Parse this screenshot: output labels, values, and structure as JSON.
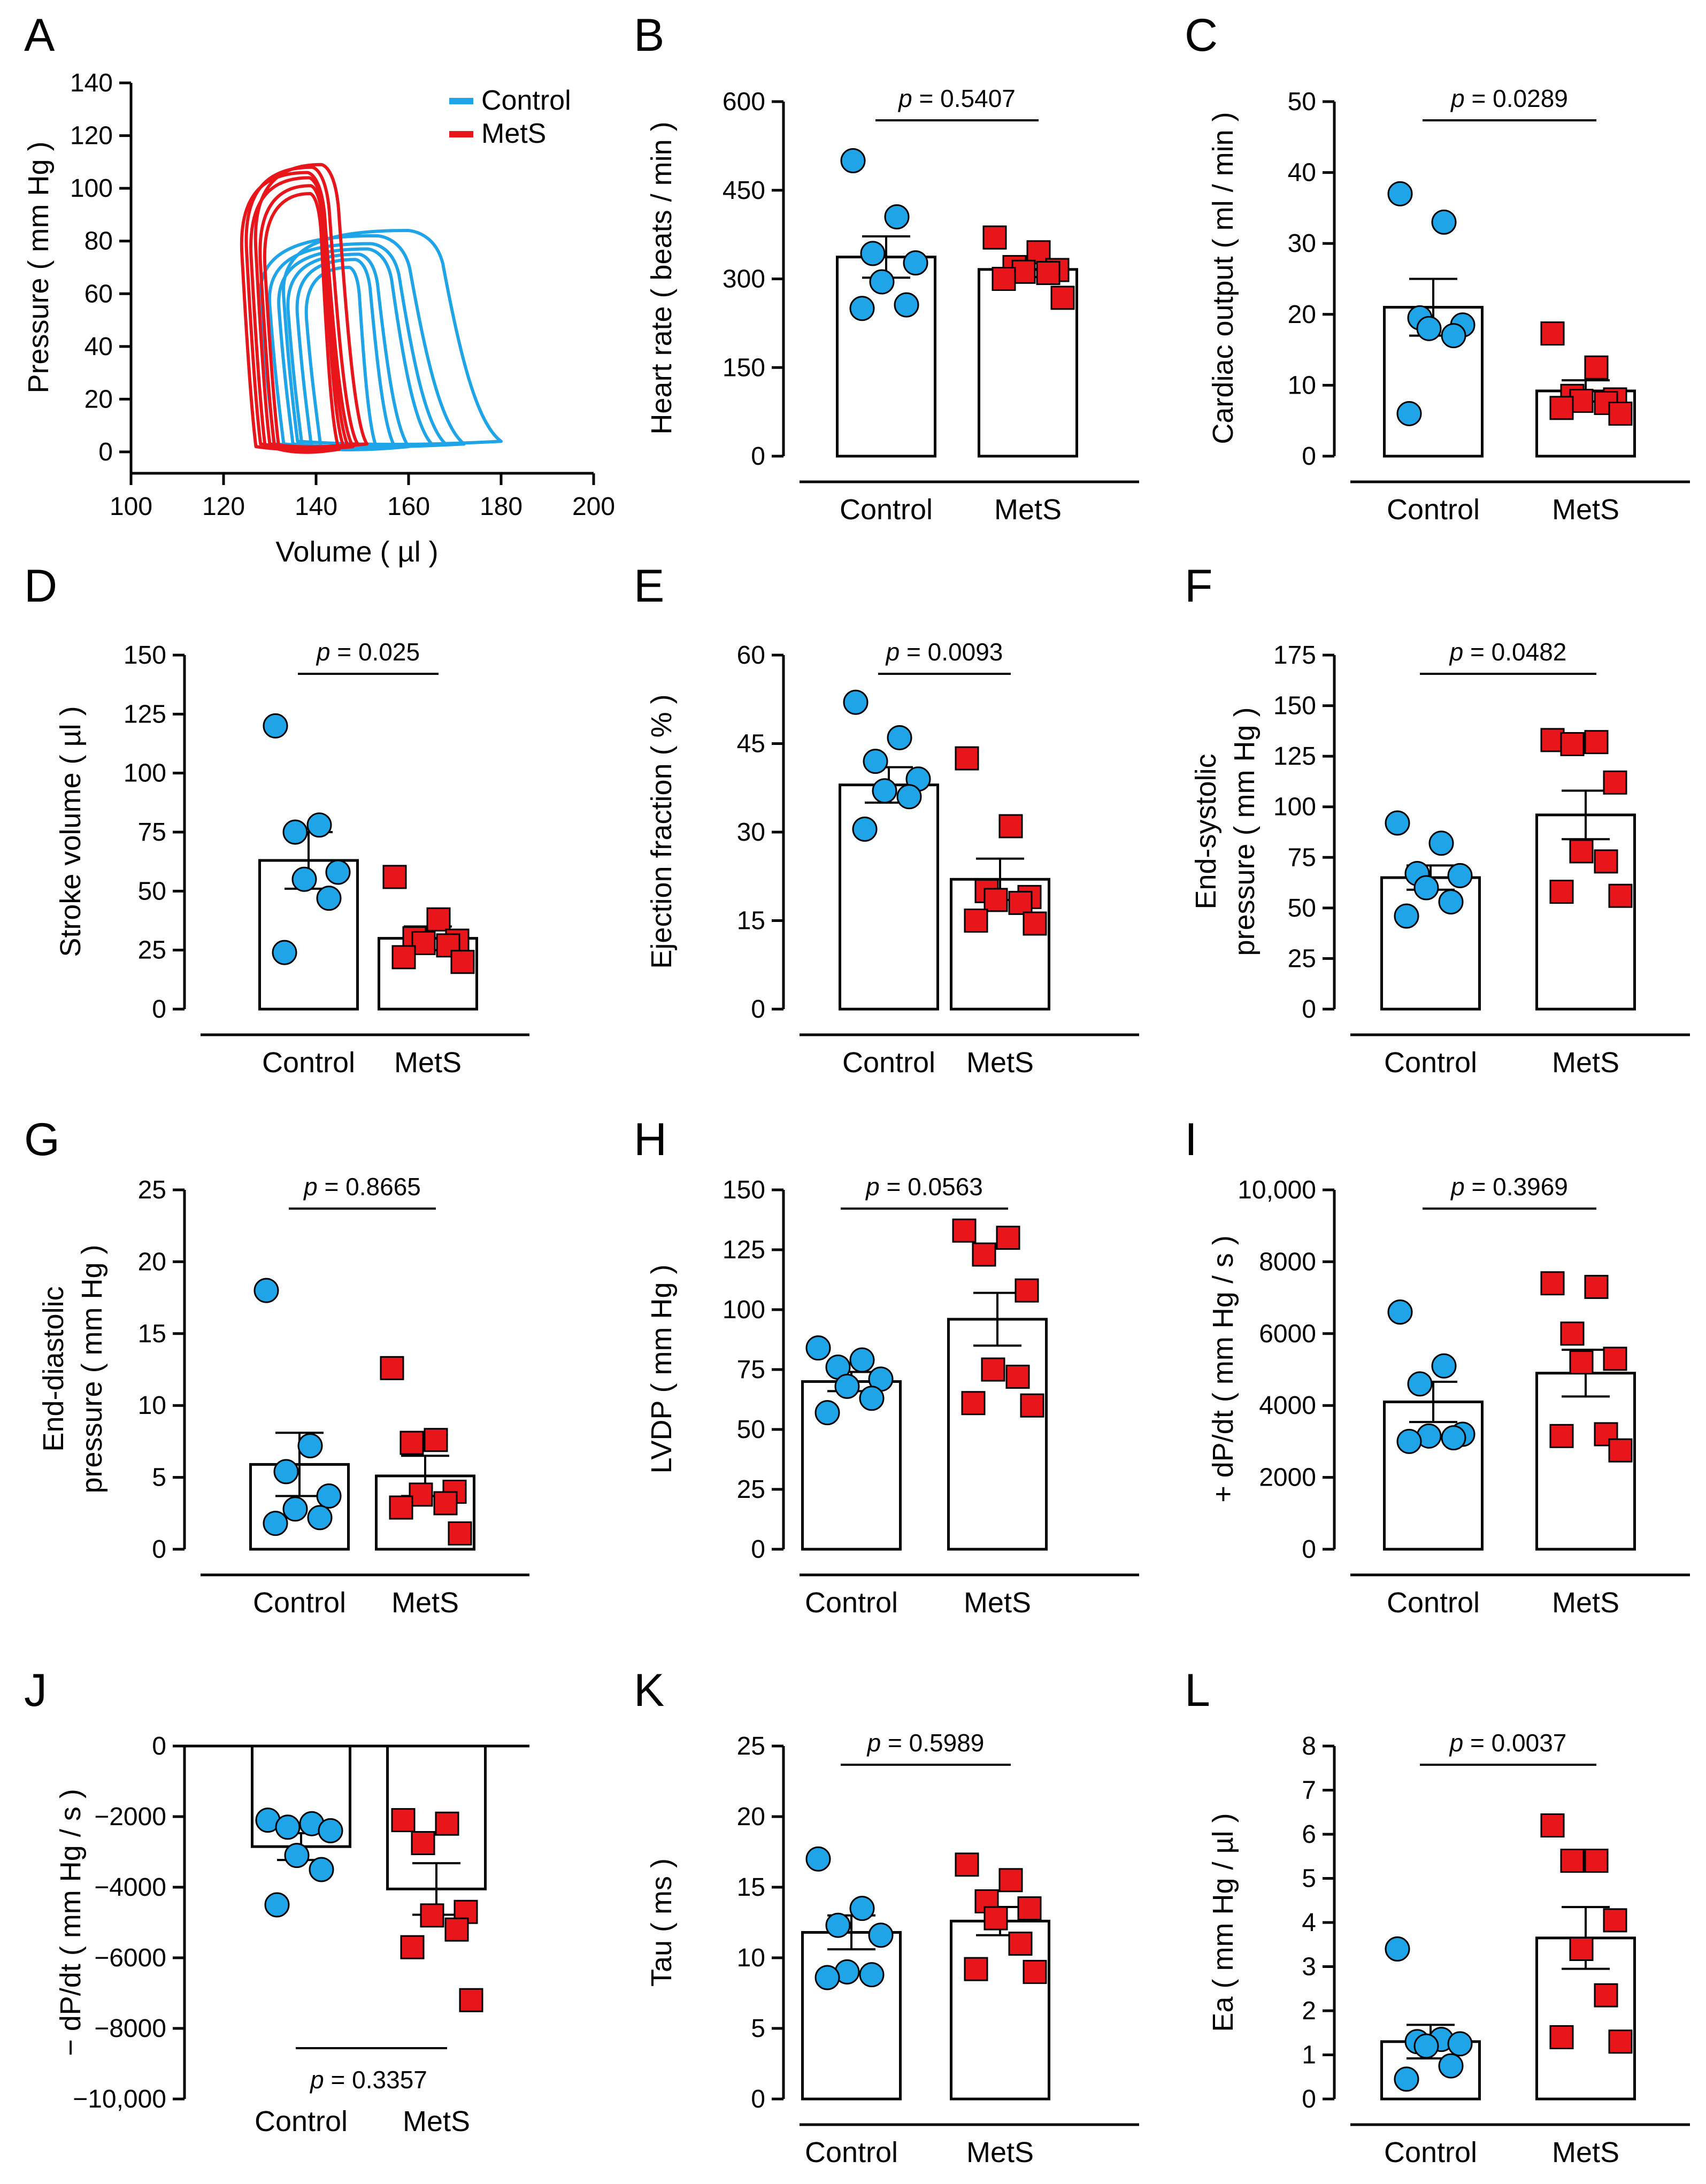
{
  "colors": {
    "control": "#1FA4E8",
    "mets": "#E8161B",
    "axis": "#000000",
    "background": "#ffffff"
  },
  "group_labels": [
    "Control",
    "MetS"
  ],
  "chart_data": [
    {
      "id": "A",
      "type": "line",
      "panel_label": "A",
      "xlabel": "Volume ( µl )",
      "ylabel": "Pressure ( mm Hg )",
      "xlim": [
        100,
        200
      ],
      "ylim": [
        0,
        140
      ],
      "xticks": [
        100,
        120,
        140,
        160,
        180,
        200
      ],
      "yticks": [
        0,
        20,
        40,
        60,
        80,
        100,
        120,
        140
      ],
      "legend": {
        "position": "top-right",
        "entries": [
          "Control",
          "MetS"
        ]
      },
      "series": [
        {
          "name": "Control",
          "loops": [
            {
              "edv": 180,
              "esv": 135,
              "ped": 3,
              "pmax": 84
            },
            {
              "edv": 172,
              "esv": 130,
              "ped": 2,
              "pmax": 82
            },
            {
              "edv": 168,
              "esv": 132,
              "ped": 2,
              "pmax": 79
            },
            {
              "edv": 165,
              "esv": 134,
              "ped": 2,
              "pmax": 77
            },
            {
              "edv": 160,
              "esv": 136,
              "ped": 1,
              "pmax": 75
            },
            {
              "edv": 157,
              "esv": 138,
              "ped": 1,
              "pmax": 73
            },
            {
              "edv": 153,
              "esv": 140,
              "ped": 1,
              "pmax": 70
            }
          ]
        },
        {
          "name": "MetS",
          "loops": [
            {
              "edv": 151,
              "esv": 129,
              "ped": 2,
              "pmax": 109
            },
            {
              "edv": 149,
              "esv": 127,
              "ped": 2,
              "pmax": 108
            },
            {
              "edv": 148,
              "esv": 126,
              "ped": 1,
              "pmax": 106
            },
            {
              "edv": 147,
              "esv": 128,
              "ped": 1,
              "pmax": 104
            },
            {
              "edv": 146,
              "esv": 130,
              "ped": 1,
              "pmax": 101
            },
            {
              "edv": 145,
              "esv": 131,
              "ped": 0,
              "pmax": 98
            }
          ]
        }
      ]
    },
    {
      "id": "B",
      "type": "bar",
      "panel_label": "B",
      "ylabel": "Heart rate ( beats / min )",
      "ylim": [
        0,
        600
      ],
      "yticks": [
        0,
        150,
        300,
        450,
        600
      ],
      "p_label": "p = 0.5407",
      "p_position": "top",
      "categories": [
        "Control",
        "MetS"
      ],
      "values": [
        337,
        316
      ],
      "sem": [
        35,
        13
      ],
      "points": [
        [
          500,
          405,
          343,
          327,
          295,
          256,
          250
        ],
        [
          370,
          345,
          320,
          315,
          312,
          310,
          300,
          268
        ]
      ]
    },
    {
      "id": "C",
      "type": "bar",
      "panel_label": "C",
      "ylabel": "Cardiac output ( ml / min )",
      "ylim": [
        0,
        50
      ],
      "yticks": [
        0,
        10,
        20,
        30,
        40,
        50
      ],
      "p_label": "p = 0.0289",
      "p_position": "top",
      "categories": [
        "Control",
        "MetS"
      ],
      "values": [
        21,
        9.2
      ],
      "sem": [
        4,
        1.5
      ],
      "points": [
        [
          37,
          33,
          19.5,
          18.5,
          18,
          17,
          6
        ],
        [
          17.3,
          12.5,
          8.5,
          8,
          7.8,
          7.5,
          6.8,
          6
        ]
      ]
    },
    {
      "id": "D",
      "type": "bar",
      "panel_label": "D",
      "ylabel": "Stroke volume ( µl )",
      "ylim": [
        0,
        150
      ],
      "yticks": [
        0,
        25,
        50,
        75,
        100,
        125,
        150
      ],
      "p_label": "p = 0.025",
      "p_position": "top",
      "categories": [
        "Control",
        "MetS"
      ],
      "values": [
        63,
        30
      ],
      "sem": [
        12,
        5
      ],
      "points": [
        [
          120,
          78,
          75,
          58,
          55,
          47,
          24
        ],
        [
          56,
          38,
          30,
          29,
          28,
          27,
          22,
          20
        ]
      ]
    },
    {
      "id": "E",
      "type": "bar",
      "panel_label": "E",
      "ylabel": "Ejection fraction ( % )",
      "ylim": [
        0,
        60
      ],
      "yticks": [
        0,
        15,
        30,
        45,
        60
      ],
      "p_label": "p = 0.0093",
      "p_position": "top",
      "categories": [
        "Control",
        "MetS"
      ],
      "values": [
        38,
        22
      ],
      "sem": [
        3,
        3.5
      ],
      "points": [
        [
          52,
          46,
          42,
          39,
          37,
          36,
          30.5
        ],
        [
          42.5,
          31,
          20,
          19,
          18.5,
          18,
          15,
          14.5
        ]
      ]
    },
    {
      "id": "F",
      "type": "bar",
      "panel_label": "F",
      "ylabel": "End-systolic pressure ( mm Hg )",
      "ylim": [
        0,
        175
      ],
      "yticks": [
        0,
        25,
        50,
        75,
        100,
        125,
        150,
        175
      ],
      "p_label": "p = 0.0482",
      "p_position": "top",
      "categories": [
        "Control",
        "MetS"
      ],
      "values": [
        65,
        96
      ],
      "sem": [
        6,
        12
      ],
      "points": [
        [
          92,
          82,
          67,
          66,
          60,
          53,
          46
        ],
        [
          133,
          132,
          131,
          112,
          78,
          73,
          58,
          56
        ]
      ]
    },
    {
      "id": "G",
      "type": "bar",
      "panel_label": "G",
      "ylabel": "End-diastolic pressure ( mm Hg )",
      "ylim": [
        0,
        25
      ],
      "yticks": [
        0,
        5,
        10,
        15,
        20,
        25
      ],
      "p_label": "p = 0.8665",
      "p_position": "top",
      "categories": [
        "Control",
        "MetS"
      ],
      "values": [
        5.9,
        5.1
      ],
      "sem": [
        2.2,
        1.4
      ],
      "points": [
        [
          18,
          7.2,
          5.4,
          3.7,
          2.8,
          2.2,
          1.8
        ],
        [
          12.6,
          7.6,
          7.4,
          4,
          3.8,
          3.2,
          2.9,
          1.1
        ]
      ]
    },
    {
      "id": "H",
      "type": "bar",
      "panel_label": "H",
      "ylabel": "LVDP ( mm Hg )",
      "ylim": [
        0,
        150
      ],
      "yticks": [
        0,
        25,
        50,
        75,
        100,
        125,
        150
      ],
      "p_label": "p = 0.0563",
      "p_position": "top",
      "categories": [
        "Control",
        "MetS"
      ],
      "values": [
        70,
        96
      ],
      "sem": [
        4,
        11
      ],
      "points": [
        [
          84,
          79,
          76,
          71,
          68,
          63,
          57
        ],
        [
          133,
          130,
          123,
          108,
          75,
          72,
          61,
          60
        ]
      ]
    },
    {
      "id": "I",
      "type": "bar",
      "panel_label": "I",
      "ylabel": "+ dP/dt ( mm Hg / s )",
      "ylim": [
        0,
        10000
      ],
      "yticks": [
        0,
        2000,
        4000,
        6000,
        8000,
        10000
      ],
      "ytick_labels": [
        "0",
        "2000",
        "4000",
        "6000",
        "8000",
        "10,000"
      ],
      "p_label": "p = 0.3969",
      "p_position": "top",
      "categories": [
        "Control",
        "MetS"
      ],
      "values": [
        4100,
        4900
      ],
      "sem": [
        560,
        650
      ],
      "points": [
        [
          6600,
          5100,
          4600,
          3200,
          3150,
          3100,
          3000
        ],
        [
          7400,
          7300,
          6000,
          5300,
          5200,
          3200,
          3150,
          2750
        ]
      ]
    },
    {
      "id": "J",
      "type": "bar",
      "panel_label": "J",
      "ylabel": "− dP/dt ( mm Hg / s )",
      "ylim": [
        -10000,
        0
      ],
      "yticks": [
        -10000,
        -8000,
        -6000,
        -4000,
        -2000,
        0
      ],
      "ytick_labels": [
        "−10,000",
        "−8000",
        "−6000",
        "−4000",
        "−2000",
        "0"
      ],
      "p_label": "p = 0.3357",
      "p_position": "bottom",
      "categories": [
        "Control",
        "MetS"
      ],
      "values": [
        -2850,
        -4050
      ],
      "sem": [
        380,
        730
      ],
      "points": [
        [
          -2100,
          -2200,
          -2300,
          -2400,
          -3100,
          -3500,
          -4500
        ],
        [
          -2100,
          -2200,
          -2750,
          -4700,
          -4800,
          -5200,
          -5700,
          -7200
        ]
      ]
    },
    {
      "id": "K",
      "type": "bar",
      "panel_label": "K",
      "ylabel": "Tau ( ms )",
      "ylim": [
        0,
        25
      ],
      "yticks": [
        0,
        5,
        10,
        15,
        20,
        25
      ],
      "p_label": "p = 0.5989",
      "p_position": "top",
      "categories": [
        "Control",
        "MetS"
      ],
      "values": [
        11.8,
        12.6
      ],
      "sem": [
        1.2,
        1.0
      ],
      "points": [
        [
          17,
          13.5,
          12.3,
          11.6,
          9,
          8.8,
          8.6
        ],
        [
          16.6,
          15.5,
          14,
          13.5,
          12.8,
          11,
          9.2,
          9
        ]
      ]
    },
    {
      "id": "L",
      "type": "bar",
      "panel_label": "L",
      "ylabel": "Ea ( mm Hg / µl )",
      "ylim": [
        0,
        8
      ],
      "yticks": [
        0,
        1,
        2,
        3,
        4,
        5,
        6,
        7,
        8
      ],
      "p_label": "p = 0.0037",
      "p_position": "top",
      "categories": [
        "Control",
        "MetS"
      ],
      "values": [
        1.3,
        3.65
      ],
      "sem": [
        0.38,
        0.7
      ],
      "points": [
        [
          3.4,
          1.35,
          1.3,
          1.25,
          1.2,
          0.75,
          0.45
        ],
        [
          6.2,
          5.4,
          5.4,
          4.05,
          3.4,
          2.35,
          1.4,
          1.3
        ]
      ]
    }
  ]
}
